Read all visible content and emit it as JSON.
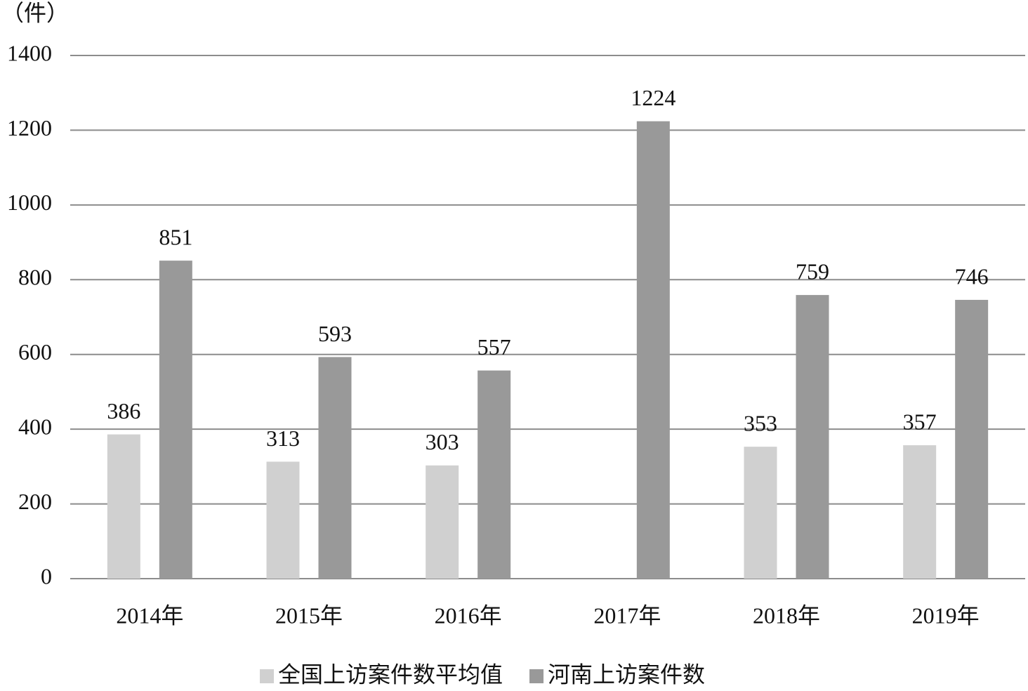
{
  "chart_data": {
    "type": "bar",
    "y_label": "（件）",
    "categories": [
      "2014年",
      "2015年",
      "2016年",
      "2017年",
      "2018年",
      "2019年"
    ],
    "series": [
      {
        "name": "全国上访案件数平均值",
        "color": "#d0d0d0",
        "values": [
          386,
          313,
          303,
          null,
          353,
          357
        ]
      },
      {
        "name": "河南上访案件数",
        "color": "#999999",
        "values": [
          851,
          593,
          557,
          1224,
          759,
          746
        ]
      }
    ],
    "ylim": [
      0,
      1400
    ],
    "yticks": [
      0,
      200,
      400,
      600,
      800,
      1000,
      1200,
      1400
    ],
    "grid": true,
    "legend": "bottom"
  }
}
